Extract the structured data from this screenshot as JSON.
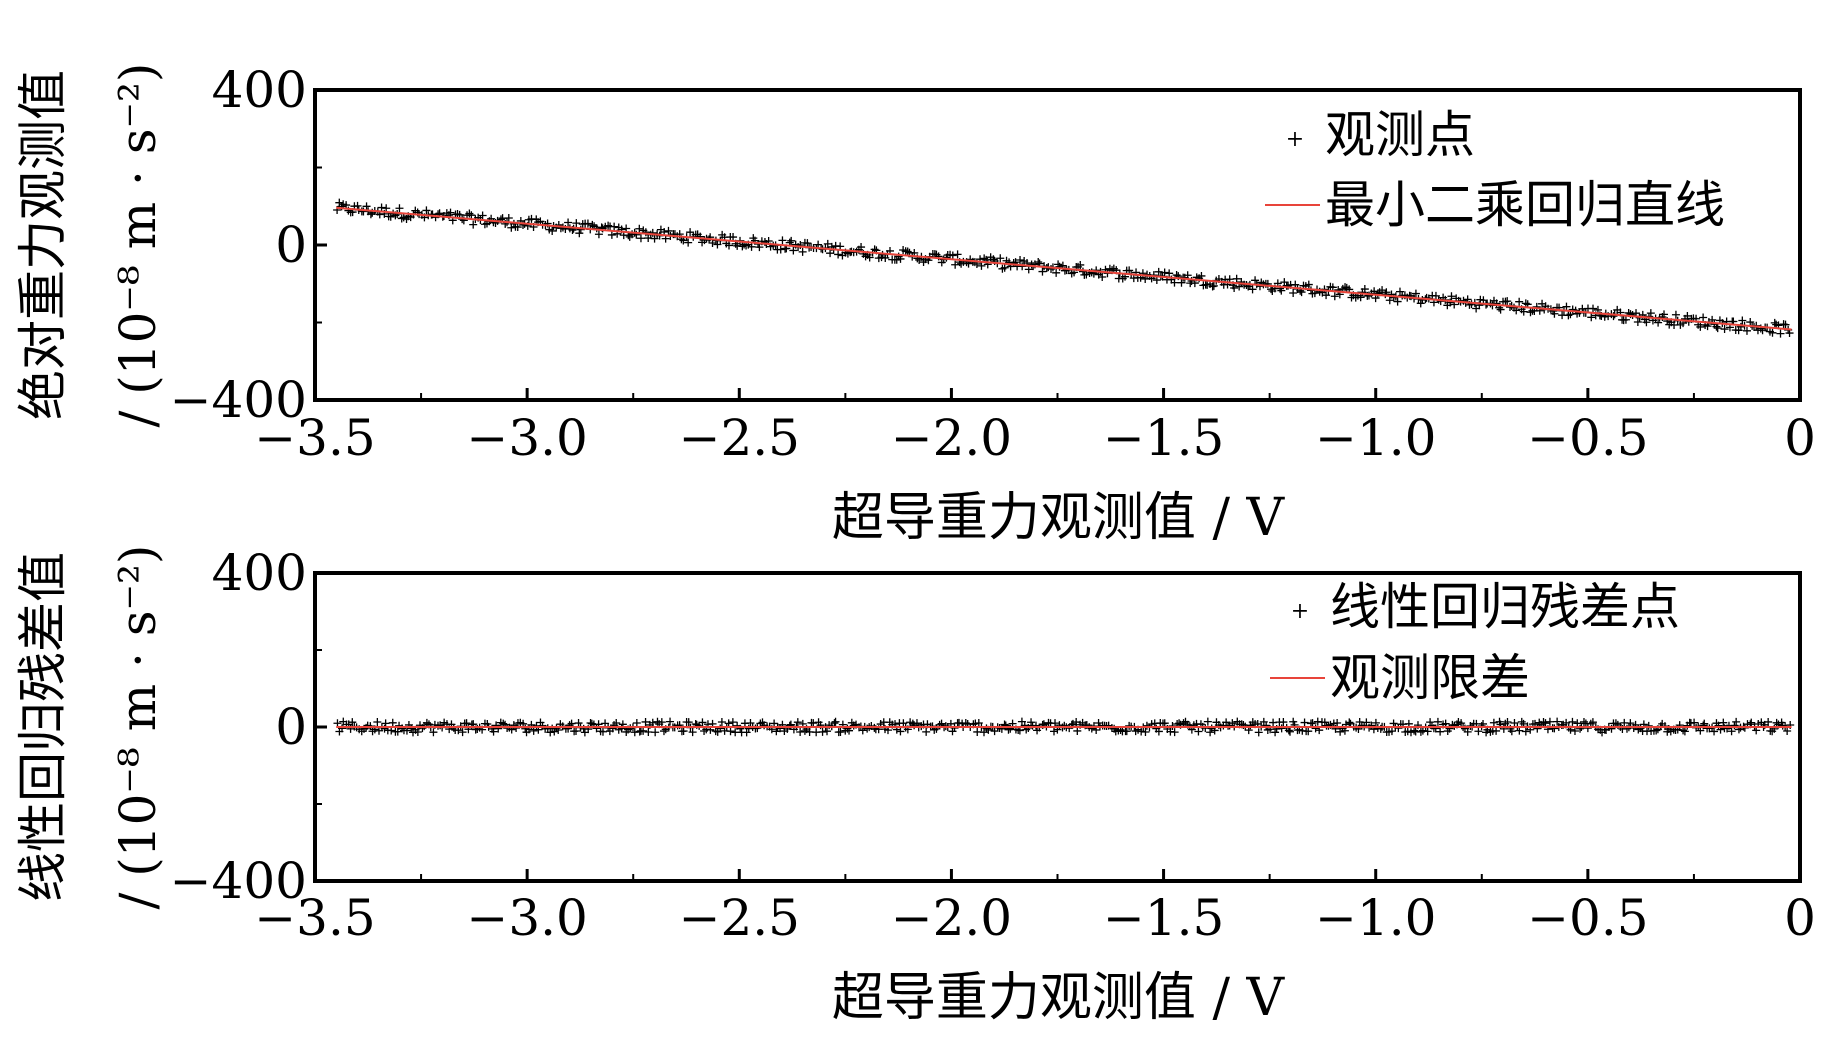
{
  "chart_data": [
    {
      "type": "scatter",
      "title": "",
      "xlabel": "超导重力观测值 / V",
      "ylabel_line1": "绝对重力观测值",
      "ylabel_line2": "/ (10⁻⁸ m · s⁻²)",
      "xlim": [
        -3.5,
        0
      ],
      "ylim": [
        -400,
        400
      ],
      "xticks": [
        -3.5,
        -3.0,
        -2.5,
        -2.0,
        -1.5,
        -1.0,
        -0.5,
        0
      ],
      "xtick_labels": [
        "−3.5",
        "−3.0",
        "−2.5",
        "−2.0",
        "−1.5",
        "−1.0",
        "−0.5",
        "0"
      ],
      "yticks": [
        400,
        0,
        -400
      ],
      "ytick_labels": [
        "400",
        "0",
        "−400"
      ],
      "legend_position": "top-right",
      "series": [
        {
          "name": "观测点",
          "type": "scatter",
          "marker": "+",
          "color": "#000000",
          "x_range": [
            -3.45,
            -0.02
          ],
          "trend": {
            "at_x_start": 96,
            "at_x_end": -218
          },
          "scatter_amplitude": 14
        },
        {
          "name": "最小二乘回归直线",
          "type": "line",
          "color": "#e8443a",
          "x": [
            -3.45,
            -0.02
          ],
          "y": [
            96,
            -218
          ]
        }
      ]
    },
    {
      "type": "scatter",
      "title": "",
      "xlabel": "超导重力观测值 / V",
      "ylabel_line1": "线性回归残差值",
      "ylabel_line2": "/ (10⁻⁸ m · s⁻²)",
      "xlim": [
        -3.5,
        0
      ],
      "ylim": [
        -400,
        400
      ],
      "xticks": [
        -3.5,
        -3.0,
        -2.5,
        -2.0,
        -1.5,
        -1.0,
        -0.5,
        0
      ],
      "xtick_labels": [
        "−3.5",
        "−3.0",
        "−2.5",
        "−2.0",
        "−1.5",
        "−1.0",
        "−0.5",
        "0"
      ],
      "yticks": [
        400,
        0,
        -400
      ],
      "ytick_labels": [
        "400",
        "0",
        "−400"
      ],
      "legend_position": "top-right",
      "series": [
        {
          "name": "线性回归残差点",
          "type": "scatter",
          "marker": "+",
          "color": "#000000",
          "x_range": [
            -3.45,
            -0.02
          ],
          "trend": {
            "at_x_start": 0,
            "at_x_end": 0
          },
          "scatter_amplitude": 14
        },
        {
          "name": "观测限差",
          "type": "line",
          "color": "#e8443a",
          "x": [
            -3.45,
            -0.02
          ],
          "y": [
            0,
            0
          ]
        }
      ]
    }
  ]
}
